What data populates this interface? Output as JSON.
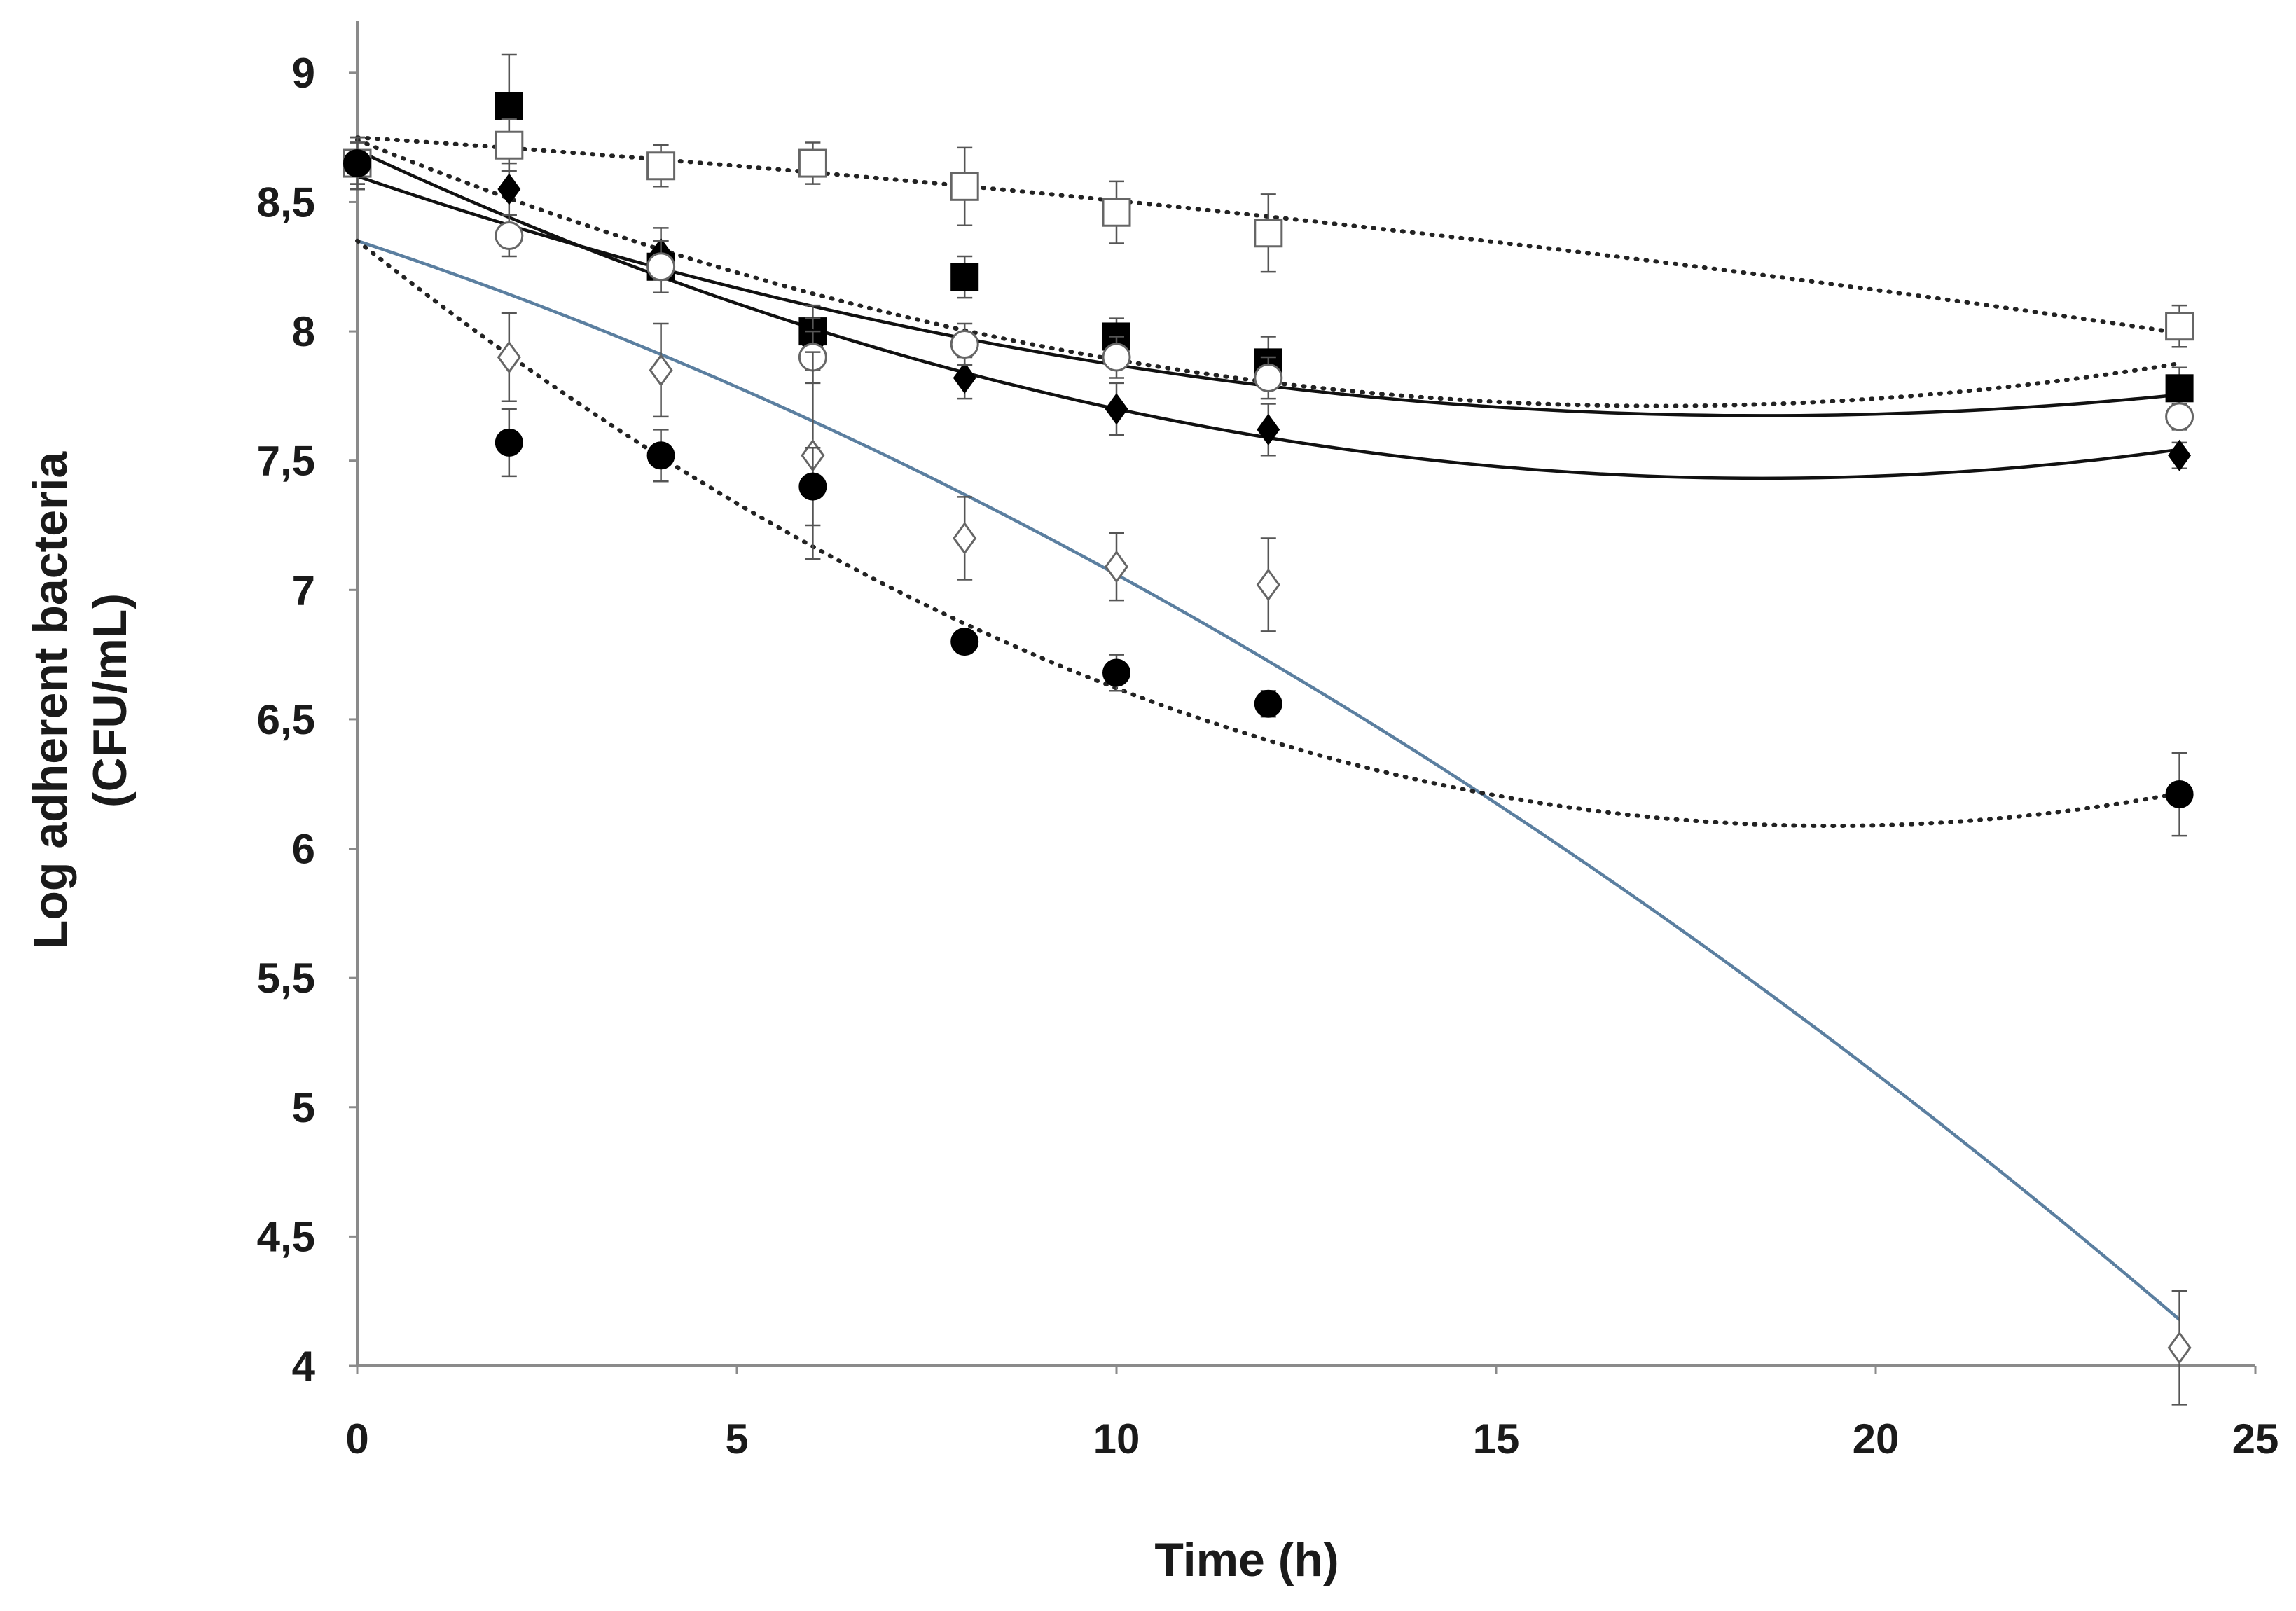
{
  "chart_data": {
    "type": "scatter",
    "title": "",
    "xlabel": "Time (h)",
    "ylabel_lines": [
      "Log adherent bacteria",
      "(CFU/mL)"
    ],
    "xlim": [
      0,
      25
    ],
    "ylim": [
      4,
      9.2
    ],
    "x_ticks": [
      0,
      5,
      10,
      15,
      20,
      25
    ],
    "y_ticks": [
      4,
      4.5,
      5,
      5.5,
      6,
      6.5,
      7,
      7.5,
      8,
      8.5,
      9
    ],
    "y_tick_labels": [
      "4",
      "4,5",
      "5",
      "5,5",
      "6",
      "6,5",
      "7",
      "7,5",
      "8",
      "8,5",
      "9"
    ],
    "x_tick_labels": [
      "0",
      "5",
      "10",
      "15",
      "20",
      "25"
    ],
    "grid": false,
    "legend": "none",
    "series": [
      {
        "marker": "square-filled",
        "x": [
          0,
          2,
          4,
          6,
          8,
          10,
          12,
          24
        ],
        "y": [
          8.65,
          8.87,
          8.25,
          8.0,
          8.21,
          7.98,
          7.88,
          7.78
        ],
        "err": [
          0.1,
          0.2,
          0.1,
          0.1,
          0.08,
          0.07,
          0.1,
          0.08
        ],
        "trend": [
          8.6,
          -0.1,
          0.0027
        ],
        "trend_style": "solid",
        "trend_color": "#111111"
      },
      {
        "marker": "square-open",
        "x": [
          0,
          2,
          4,
          6,
          8,
          10,
          12,
          24
        ],
        "y": [
          8.65,
          8.72,
          8.64,
          8.65,
          8.56,
          8.46,
          8.38,
          8.02
        ],
        "err": [
          0.08,
          0.1,
          0.08,
          0.08,
          0.15,
          0.12,
          0.15,
          0.08
        ],
        "trend": [
          8.75,
          -0.0195,
          -0.0005
        ],
        "trend_style": "dotted",
        "trend_color": "#222222"
      },
      {
        "marker": "diamond-filled",
        "x": [
          0,
          2,
          4,
          6,
          8,
          10,
          12,
          24
        ],
        "y": [
          8.65,
          8.55,
          8.3,
          7.95,
          7.82,
          7.7,
          7.62,
          7.52
        ],
        "err": [
          0.1,
          0.1,
          0.1,
          0.1,
          0.08,
          0.1,
          0.1,
          0.05
        ],
        "trend": [
          8.7,
          -0.137,
          0.0037
        ],
        "trend_style": "solid",
        "trend_color": "#111111"
      },
      {
        "marker": "circle-open",
        "x": [
          0,
          2,
          4,
          6,
          8,
          10,
          12,
          24
        ],
        "y": [
          8.65,
          8.37,
          8.25,
          7.9,
          7.95,
          7.9,
          7.82,
          7.67
        ],
        "err": [
          0.08,
          0.08,
          0.1,
          0.1,
          0.08,
          0.08,
          0.08,
          0.05
        ],
        "trend": [
          8.74,
          -0.12,
          0.0035
        ],
        "trend_style": "dotted",
        "trend_color": "#222222"
      },
      {
        "marker": "diamond-open",
        "x": [
          0,
          2,
          4,
          6,
          8,
          10,
          12,
          24
        ],
        "y": [
          8.65,
          7.9,
          7.85,
          7.52,
          7.2,
          7.09,
          7.02,
          4.07
        ],
        "err": [
          0.1,
          0.17,
          0.18,
          0.4,
          0.16,
          0.13,
          0.18,
          0.22
        ],
        "trend": [
          8.35,
          -0.097,
          -0.0032
        ],
        "trend_style": "solid",
        "trend_color": "#5b7fa0"
      },
      {
        "marker": "circle-filled",
        "x": [
          0,
          2,
          4,
          6,
          8,
          10,
          12,
          24
        ],
        "y": [
          8.65,
          7.57,
          7.52,
          7.4,
          6.8,
          6.68,
          6.56,
          6.21
        ],
        "err": [
          0.1,
          0.13,
          0.1,
          0.15,
          0.04,
          0.07,
          0.05,
          0.16
        ],
        "trend": [
          8.35,
          -0.233,
          0.006
        ],
        "trend_style": "dotted",
        "trend_color": "#222222"
      }
    ]
  }
}
